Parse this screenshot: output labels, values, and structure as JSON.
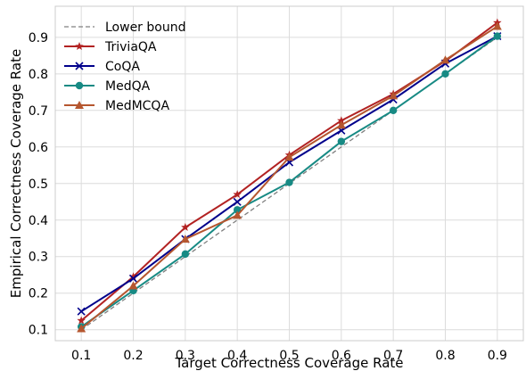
{
  "chart_data": {
    "type": "line",
    "title": "",
    "xlabel": "Target Correctness Coverage Rate",
    "ylabel": "Empirical Correctness Coverage Rate",
    "xlim": [
      0.05,
      0.95
    ],
    "ylim": [
      0.07,
      0.985
    ],
    "xticks": [
      "0.1",
      "0.2",
      "0.3",
      "0.4",
      "0.5",
      "0.6",
      "0.7",
      "0.8",
      "0.9"
    ],
    "yticks": [
      "0.1",
      "0.2",
      "0.3",
      "0.4",
      "0.5",
      "0.6",
      "0.7",
      "0.8",
      "0.9"
    ],
    "grid": true,
    "legend_position": "top-left",
    "x": [
      0.1,
      0.2,
      0.3,
      0.4,
      0.5,
      0.6,
      0.7,
      0.8,
      0.9
    ],
    "series": [
      {
        "name": "Lower bound",
        "style": "dashed",
        "marker": "none",
        "color": "#808080",
        "values": [
          0.1,
          0.2,
          0.3,
          0.4,
          0.5,
          0.6,
          0.7,
          0.8,
          0.9
        ]
      },
      {
        "name": "TriviaQA",
        "style": "solid",
        "marker": "star",
        "color": "#b22222",
        "values": [
          0.125,
          0.245,
          0.38,
          0.47,
          0.578,
          0.672,
          0.745,
          0.835,
          0.94
        ]
      },
      {
        "name": "CoQA",
        "style": "solid",
        "marker": "x",
        "color": "#00008b",
        "values": [
          0.15,
          0.24,
          0.348,
          0.45,
          0.558,
          0.645,
          0.73,
          0.828,
          0.903
        ]
      },
      {
        "name": "MedQA",
        "style": "solid",
        "marker": "circle",
        "color": "#178a84",
        "values": [
          0.108,
          0.207,
          0.307,
          0.428,
          0.503,
          0.615,
          0.7,
          0.8,
          0.903
        ]
      },
      {
        "name": "MedMCQA",
        "style": "solid",
        "marker": "triangle",
        "color": "#b5562f",
        "values": [
          0.103,
          0.22,
          0.348,
          0.413,
          0.572,
          0.66,
          0.74,
          0.838,
          0.93
        ]
      }
    ]
  }
}
